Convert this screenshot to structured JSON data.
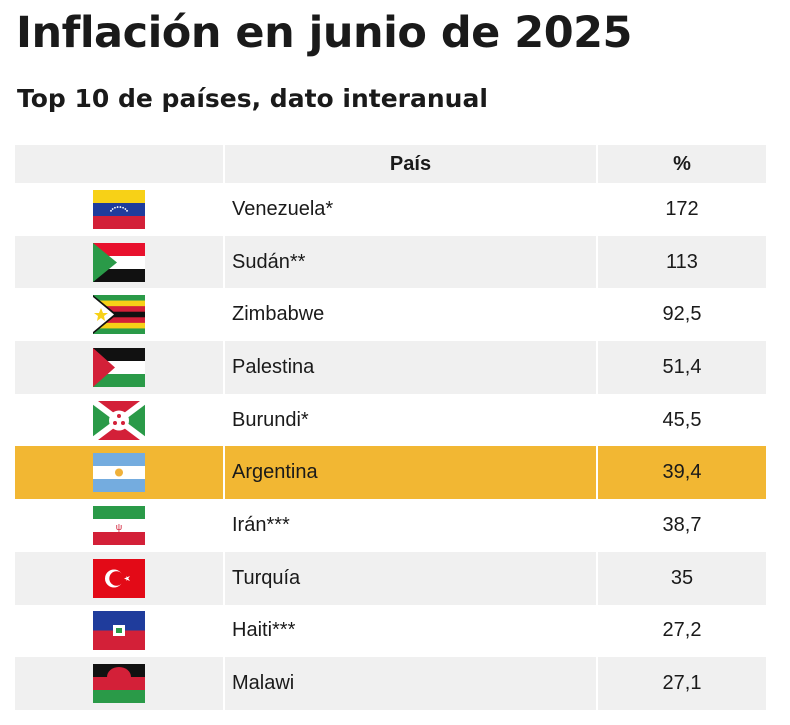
{
  "title": "Inflación en junio de 2025",
  "subtitle": "Top 10 de países, dato interanual",
  "chart_data": {
    "type": "table",
    "columns": [
      "",
      "País",
      "%"
    ],
    "highlight_color": "#f2b733",
    "rows": [
      {
        "flag": "venezuela-flag",
        "country": "Venezuela*",
        "value": "172"
      },
      {
        "flag": "sudan-flag",
        "country": "Sudán**",
        "value": "113"
      },
      {
        "flag": "zimbabwe-flag",
        "country": "Zimbabwe",
        "value": "92,5"
      },
      {
        "flag": "palestine-flag",
        "country": "Palestina",
        "value": "51,4"
      },
      {
        "flag": "burundi-flag",
        "country": "Burundi*",
        "value": "45,5"
      },
      {
        "flag": "argentina-flag",
        "country": "Argentina",
        "value": "39,4",
        "highlight": true
      },
      {
        "flag": "iran-flag",
        "country": "Irán***",
        "value": "38,7"
      },
      {
        "flag": "turkey-flag",
        "country": "Turquía",
        "value": "35"
      },
      {
        "flag": "haiti-flag",
        "country": "Haiti***",
        "value": "27,2"
      },
      {
        "flag": "malawi-flag",
        "country": "Malawi",
        "value": "27,1"
      }
    ]
  }
}
